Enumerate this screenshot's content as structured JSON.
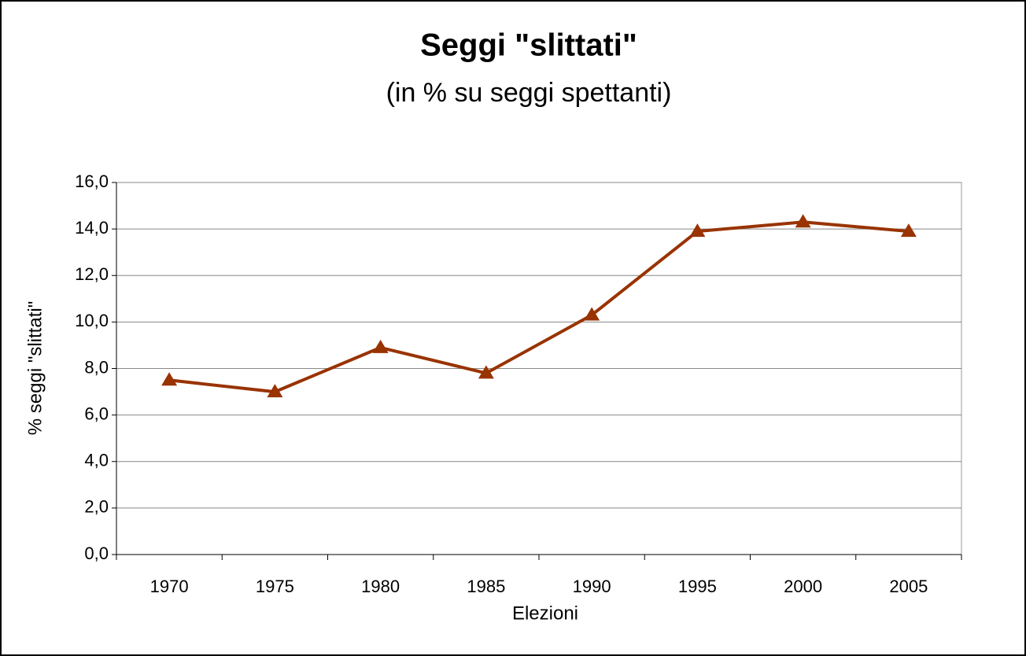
{
  "chart_data": {
    "type": "line",
    "title": "Seggi \"slittati\"",
    "subtitle": "(in % su seggi spettanti)",
    "x_label": "Elezioni",
    "y_label": "% seggi \"slittati\"",
    "categories": [
      "1970",
      "1975",
      "1980",
      "1985",
      "1990",
      "1995",
      "2000",
      "2005"
    ],
    "series": [
      {
        "name": "% seggi \"slittati\"",
        "color": "#993300",
        "values": [
          7.5,
          7.0,
          8.9,
          7.8,
          10.3,
          13.9,
          14.3,
          13.9
        ]
      }
    ],
    "ylim": [
      0,
      16
    ],
    "yticks": [
      {
        "value": 0,
        "label": "0,0"
      },
      {
        "value": 2,
        "label": "2,0"
      },
      {
        "value": 4,
        "label": "4,0"
      },
      {
        "value": 6,
        "label": "6,0"
      },
      {
        "value": 8,
        "label": "8,0"
      },
      {
        "value": 10,
        "label": "10,0"
      },
      {
        "value": 12,
        "label": "12,0"
      },
      {
        "value": 14,
        "label": "14,0"
      },
      {
        "value": 16,
        "label": "16,0"
      }
    ],
    "grid": true
  }
}
